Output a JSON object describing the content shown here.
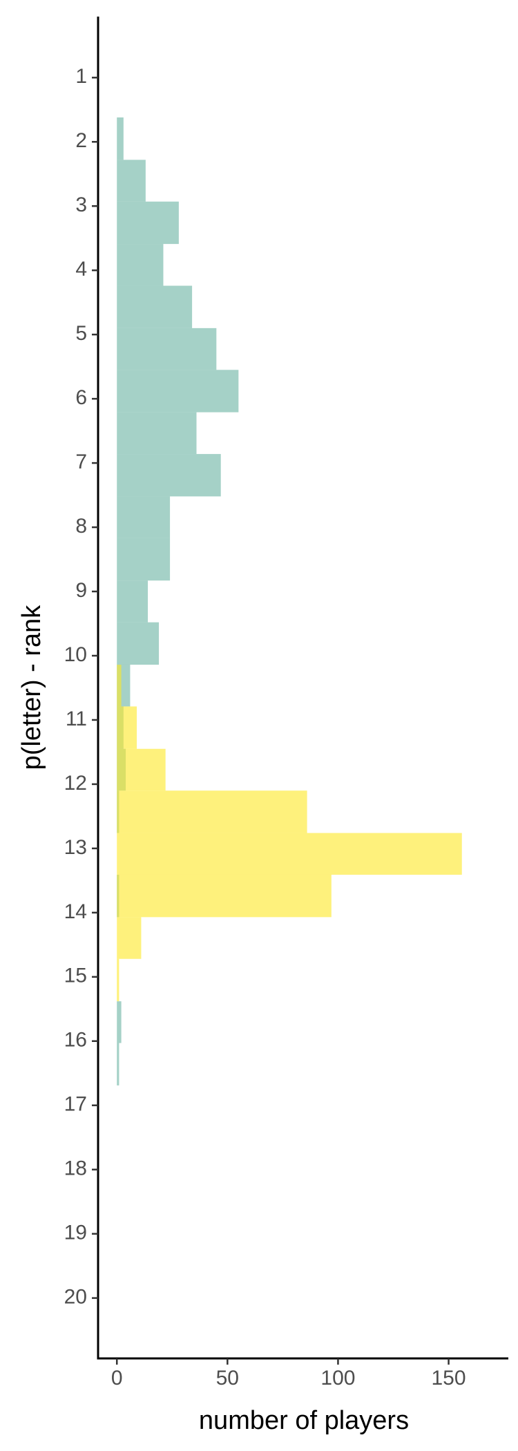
{
  "chart_data": {
    "type": "histogram",
    "orientation": "horizontal",
    "x_label": "number of players",
    "y_label": "p(letter) - rank",
    "bins": [
      1.62,
      2.28,
      2.93,
      3.59,
      4.24,
      4.9,
      5.55,
      6.21,
      6.86,
      7.52,
      8.17,
      8.83,
      9.48,
      10.14,
      10.79,
      11.45,
      12.1,
      12.76,
      13.41,
      14.07,
      14.72,
      15.38,
      16.03,
      16.69
    ],
    "series": [
      {
        "color": "#69b3a2",
        "values": [
          3,
          13,
          28,
          21,
          34,
          45,
          55,
          36,
          47,
          24,
          24,
          14,
          19,
          6,
          3,
          4,
          1,
          0,
          1,
          0,
          0,
          2,
          1
        ]
      },
      {
        "color": "#fde725",
        "values": [
          0,
          0,
          0,
          0,
          0,
          0,
          0,
          0,
          0,
          0,
          0,
          0,
          0,
          2,
          9,
          22,
          86,
          156,
          97,
          11,
          1,
          0,
          0
        ]
      }
    ],
    "xlim": [
      -8.5,
      177
    ],
    "xticks": [
      0,
      50,
      100,
      150
    ],
    "ylim": [
      0.05,
      20.94
    ],
    "y_reversed": true,
    "yticks": [
      1,
      2,
      3,
      4,
      5,
      6,
      7,
      8,
      9,
      10,
      11,
      12,
      13,
      14,
      15,
      16,
      17,
      18,
      19,
      20
    ],
    "grid": false
  }
}
